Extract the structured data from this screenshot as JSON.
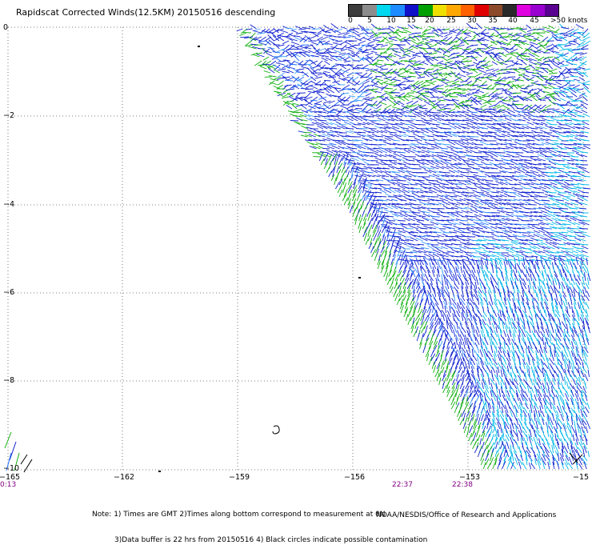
{
  "title": "Rapidscat Corrected Winds(12.5KM) 20150516 descending",
  "colorbar": {
    "labels": [
      "0",
      "5",
      "10",
      "15",
      "20",
      "25",
      "30",
      "35",
      "40",
      "45",
      ">50 knots"
    ],
    "colors": [
      "#3c3c3c",
      "#8c8c8c",
      "#00d8f0",
      "#1e8cff",
      "#1010c8",
      "#00a000",
      "#f0e000",
      "#ffa800",
      "#ff6000",
      "#e00000",
      "#8c4a2a",
      "#2a2a2a",
      "#e000e0",
      "#9a00d0",
      "#5a0090"
    ]
  },
  "axes": {
    "lat_labels": [
      "0",
      "−2",
      "−4",
      "−6",
      "−8",
      "−10"
    ],
    "lon_labels": [
      "−165",
      "−162",
      "−159",
      "−156",
      "−153",
      "−15"
    ]
  },
  "times": [
    "0:13",
    "22:37",
    "22:38"
  ],
  "notes": [
    "Note: 1) Times are GMT 2)Times along bottom correspond to measurement at 0N",
    "3)Data buffer is 22 hrs from 20150516 4) Black circles indicate possible contamination"
  ],
  "credit": "NOAA/NESDIS/Office of Research and Applications"
}
